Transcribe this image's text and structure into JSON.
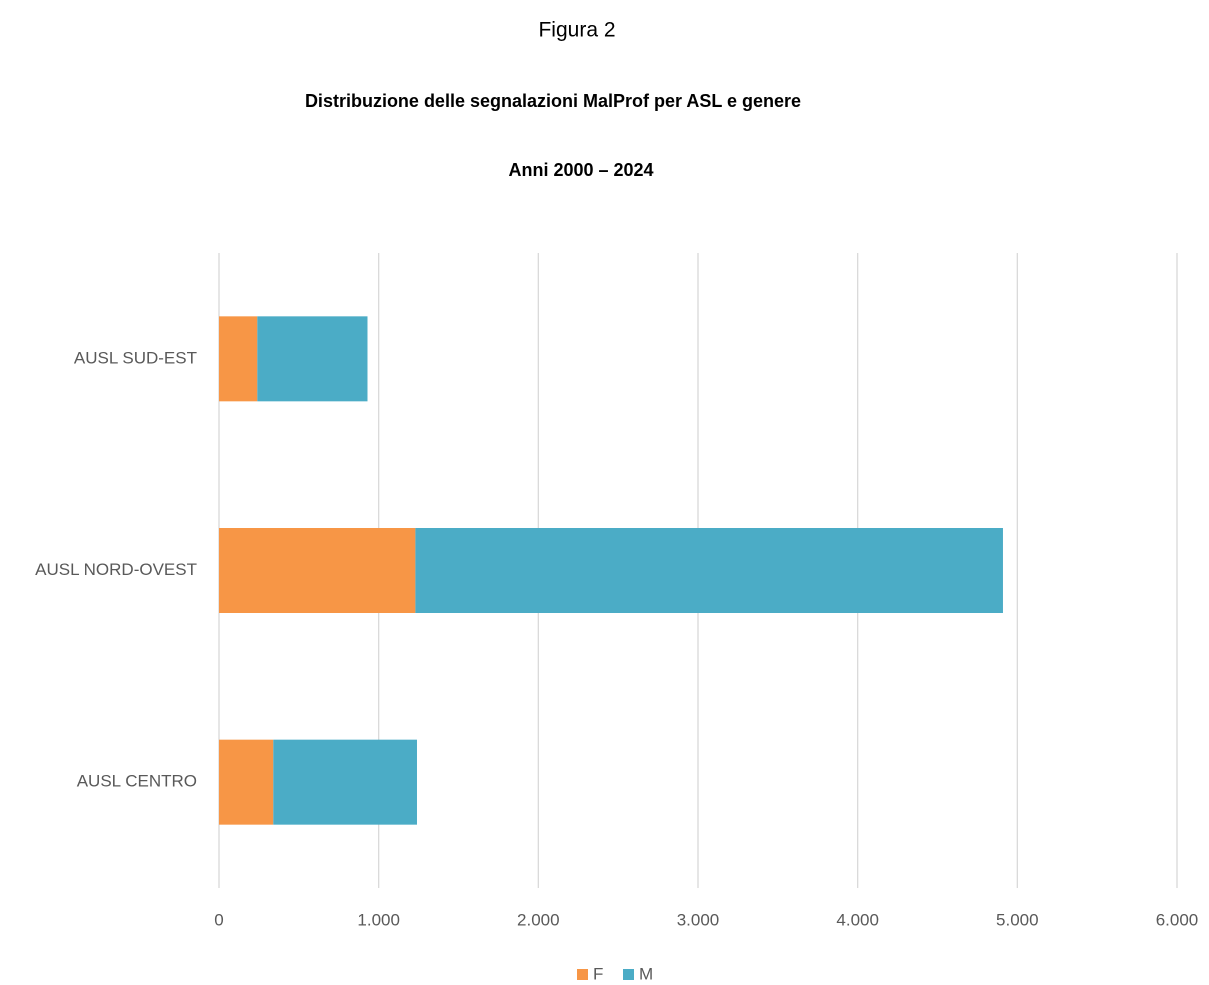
{
  "chart_data": {
    "type": "stacked-barh",
    "figure_label": "Figura 2",
    "title": "Distribuzione delle segnalazioni MalProf per ASL e genere",
    "subtitle": "Anni 2000 – 2024",
    "categories": [
      "AUSL SUD-EST",
      "AUSL NORD-OVEST",
      "AUSL CENTRO"
    ],
    "series": [
      {
        "name": "F",
        "color": "#f79646",
        "values": [
          240,
          1230,
          340
        ]
      },
      {
        "name": "M",
        "color": "#4bacc6",
        "values": [
          690,
          3680,
          900
        ]
      }
    ],
    "xlim": [
      0,
      6000
    ],
    "xticks": [
      0,
      {
        "value": 1000,
        "label": "1.000"
      },
      {
        "value": 2000,
        "label": "2.000"
      },
      {
        "value": 3000,
        "label": "3.000"
      },
      {
        "value": 4000,
        "label": "4.000"
      },
      {
        "value": 5000,
        "label": "5.000"
      },
      {
        "value": 6000,
        "label": "6.000"
      }
    ],
    "grid": true,
    "legend": "bottom"
  }
}
